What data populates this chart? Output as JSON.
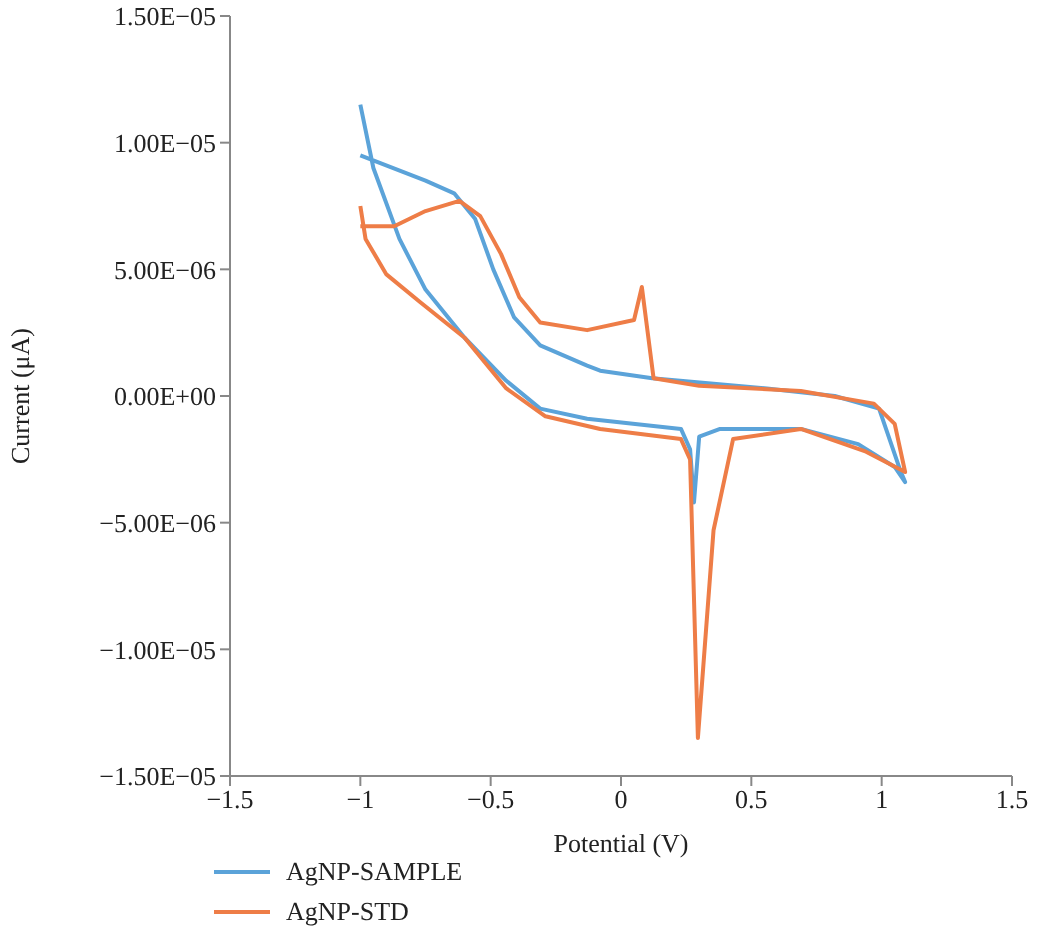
{
  "chart_data": {
    "type": "line",
    "xlabel": "Potential (V)",
    "ylabel": "Current (μA)",
    "xlim": [
      -1.5,
      1.5
    ],
    "ylim": [
      -1.5e-05,
      1.5e-05
    ],
    "xticks": [
      {
        "value": -1.5,
        "label": "−1.5"
      },
      {
        "value": -1,
        "label": "−1"
      },
      {
        "value": -0.5,
        "label": "−0.5"
      },
      0,
      0.5,
      1,
      1.5
    ],
    "yticks": [
      {
        "value": -1.5e-05,
        "label": "−1.50E−05"
      },
      {
        "value": -1e-05,
        "label": "−1.00E−05"
      },
      {
        "value": -5e-06,
        "label": "−5.00E−06"
      },
      {
        "value": 0,
        "label": "0.00E+00"
      },
      {
        "value": 5e-06,
        "label": "5.00E−06"
      },
      {
        "value": 1e-05,
        "label": "1.00E−05"
      },
      {
        "value": 1.5e-05,
        "label": "1.50E−05"
      }
    ],
    "legend": "bottom left",
    "marker": "none",
    "line_style": "solid",
    "series": [
      {
        "name": "AgNP-SAMPLE",
        "color": "#5ba3d9",
        "x": [
          -1,
          -0.95,
          -0.85,
          -0.75,
          -0.6,
          -0.44,
          -0.31,
          -0.13,
          0.23,
          0.265,
          0.28,
          0.3,
          0.38,
          0.69,
          0.91,
          1.05,
          1.09,
          1.07,
          0.99,
          0.82,
          0.56,
          0.12,
          -0.08,
          -0.13,
          -0.31,
          -0.41,
          -0.49,
          -0.56,
          -0.64,
          -0.75,
          -1
        ],
        "values": [
          1.15e-05,
          9e-06,
          6.2e-06,
          4.2e-06,
          2.3e-06,
          6e-07,
          -5e-07,
          -9e-07,
          -1.3e-06,
          -2.1e-06,
          -4.2e-06,
          -1.6e-06,
          -1.3e-06,
          -1.3e-06,
          -1.9e-06,
          -2.8e-06,
          -3.4e-06,
          -2.9e-06,
          -5e-07,
          0,
          3e-07,
          7e-07,
          1e-06,
          1.2e-06,
          2e-06,
          3.1e-06,
          5e-06,
          7e-06,
          8e-06,
          8.5e-06,
          9.5e-06
        ]
      },
      {
        "name": "AgNP-STD",
        "color": "#ee7d47",
        "x": [
          -1,
          -0.98,
          -0.9,
          -0.77,
          -0.6,
          -0.44,
          -0.29,
          -0.08,
          0.23,
          0.265,
          0.295,
          0.355,
          0.43,
          0.69,
          0.94,
          1.09,
          1.05,
          0.97,
          0.69,
          0.3,
          0.125,
          0.08,
          0.05,
          -0.13,
          -0.31,
          -0.39,
          -0.46,
          -0.54,
          -0.62,
          -0.75,
          -0.87,
          -1
        ],
        "values": [
          7.5e-06,
          6.2e-06,
          4.8e-06,
          3.7e-06,
          2.3e-06,
          3e-07,
          -8e-07,
          -1.3e-06,
          -1.7e-06,
          -2.5e-06,
          -1.35e-05,
          -5.3e-06,
          -1.7e-06,
          -1.3e-06,
          -2.2e-06,
          -3e-06,
          -1.1e-06,
          -3e-07,
          2e-07,
          4e-07,
          7e-07,
          4.3e-06,
          3e-06,
          2.6e-06,
          2.9e-06,
          3.9e-06,
          5.6e-06,
          7.1e-06,
          7.7e-06,
          7.3e-06,
          6.7e-06,
          6.7e-06
        ]
      }
    ]
  }
}
